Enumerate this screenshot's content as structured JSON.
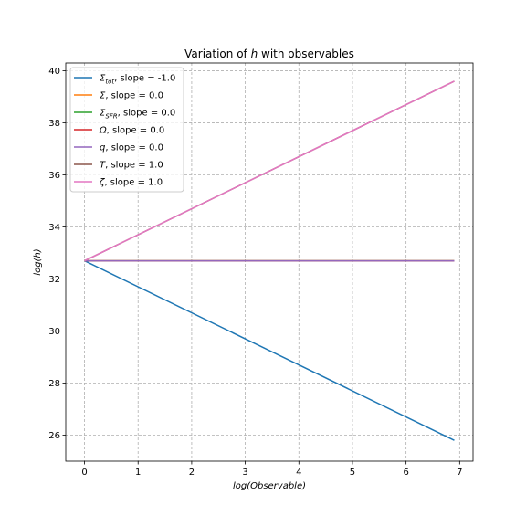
{
  "chart_data": {
    "type": "line",
    "title": "Variation of h with observables",
    "title_parts": {
      "prefix": "Variation of ",
      "var": "h",
      "suffix": " with observables"
    },
    "xlabel": "log(Observable)",
    "ylabel": "log(h)",
    "xlim": [
      -0.35,
      7.25
    ],
    "ylim": [
      25.0,
      40.3
    ],
    "xticks": [
      0,
      1,
      2,
      3,
      4,
      5,
      6,
      7
    ],
    "yticks": [
      26,
      28,
      30,
      32,
      34,
      36,
      38,
      40
    ],
    "grid": true,
    "legend_position": "top-left",
    "series": [
      {
        "name": "Σ_tot",
        "label_main": "Σ",
        "label_sub": "tot",
        "slope_text": ",  slope = -1.0",
        "color": "#1f77b4",
        "x": [
          0,
          6.9
        ],
        "y": [
          32.7,
          25.8
        ]
      },
      {
        "name": "Σ",
        "label_main": "Σ",
        "label_sub": "",
        "slope_text": ",  slope = 0.0",
        "color": "#ff7f0e",
        "x": [
          0,
          6.9
        ],
        "y": [
          32.7,
          32.7
        ]
      },
      {
        "name": "Σ_SFR",
        "label_main": "Σ",
        "label_sub": "SFR",
        "slope_text": ",  slope = 0.0",
        "color": "#2ca02c",
        "x": [
          0,
          6.9
        ],
        "y": [
          32.7,
          32.7
        ]
      },
      {
        "name": "Ω",
        "label_main": "Ω",
        "label_sub": "",
        "slope_text": ",  slope = 0.0",
        "color": "#d62728",
        "x": [
          0,
          6.9
        ],
        "y": [
          32.7,
          32.7
        ]
      },
      {
        "name": "q",
        "label_main": "q",
        "label_sub": "",
        "slope_text": ",  slope = 0.0",
        "color": "#9467bd",
        "x": [
          0,
          6.9
        ],
        "y": [
          32.7,
          32.7
        ]
      },
      {
        "name": "T",
        "label_main": "T",
        "label_sub": "",
        "slope_text": ",  slope = 1.0",
        "color": "#8c564b",
        "x": [
          0,
          6.9
        ],
        "y": [
          32.7,
          39.6
        ]
      },
      {
        "name": "ζ",
        "label_main": "ζ",
        "label_sub": "",
        "slope_text": ",  slope = 1.0",
        "color": "#e377c2",
        "x": [
          0,
          6.9
        ],
        "y": [
          32.7,
          39.6
        ]
      }
    ]
  }
}
